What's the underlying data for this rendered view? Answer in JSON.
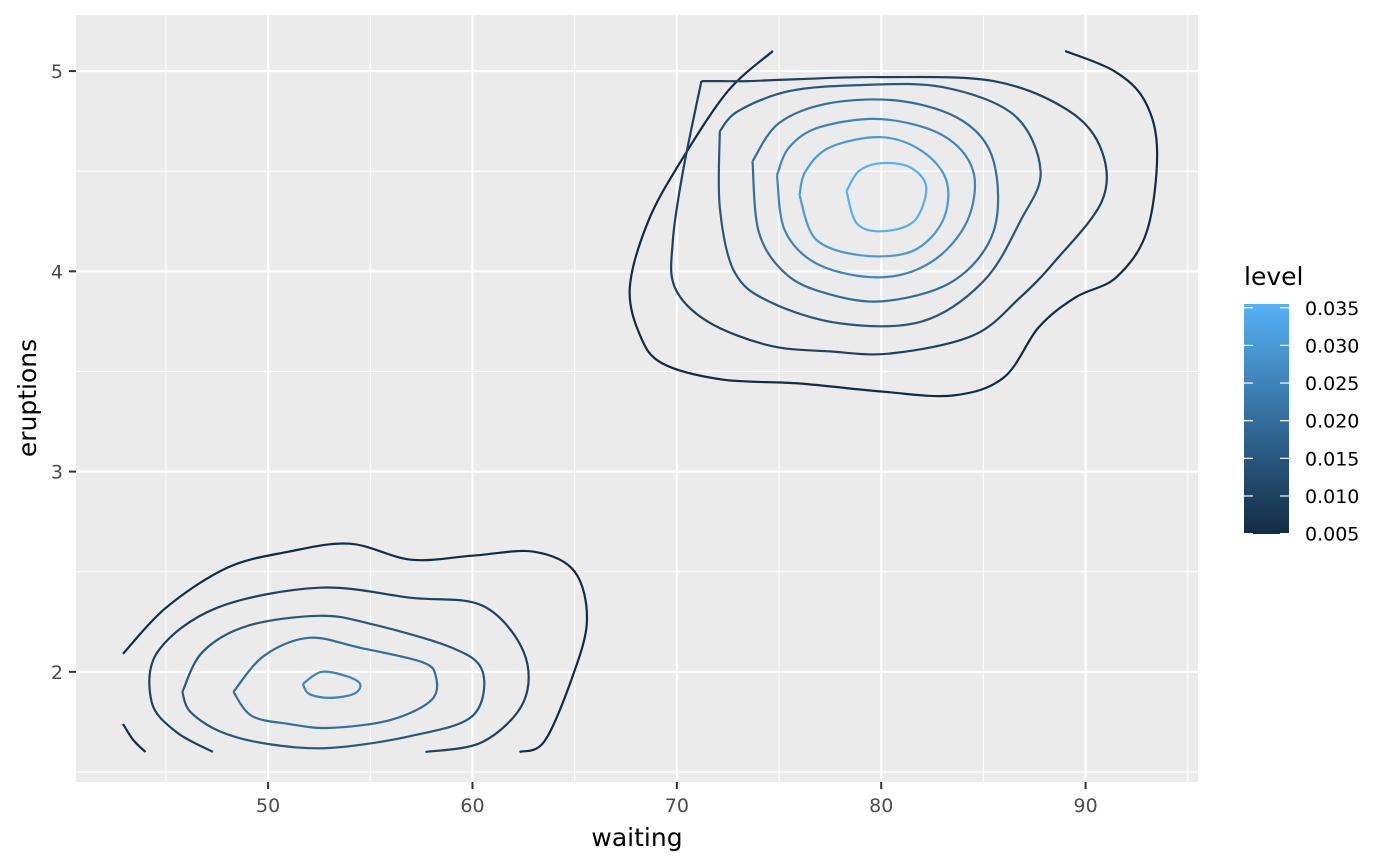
{
  "chart_data": {
    "type": "contour",
    "xlabel": "waiting",
    "ylabel": "eruptions",
    "xlim": [
      40.6,
      95.5
    ],
    "ylim": [
      1.45,
      5.28
    ],
    "x_ticks": [
      50,
      60,
      70,
      80,
      90
    ],
    "y_ticks": [
      2,
      3,
      4,
      5
    ],
    "grid": true,
    "background": "#ebebeb",
    "legend": {
      "title": "level",
      "position": "right",
      "labels": [
        "0.035",
        "0.030",
        "0.025",
        "0.020",
        "0.015",
        "0.010",
        "0.005"
      ],
      "values": [
        0.035,
        0.03,
        0.025,
        0.02,
        0.015,
        0.01,
        0.005
      ],
      "range": [
        0.00495,
        0.0355
      ],
      "color_low": "#132b43",
      "color_high": "#56b1f7"
    },
    "contours": [
      {
        "level": 0.005,
        "points": [
          [
            74.7,
            5.1
          ],
          [
            72.5,
            4.9
          ],
          [
            70.2,
            4.55
          ],
          [
            68.6,
            4.25
          ],
          [
            67.7,
            3.92
          ],
          [
            68.2,
            3.68
          ],
          [
            69.3,
            3.54
          ],
          [
            72.2,
            3.46
          ],
          [
            76.0,
            3.44
          ],
          [
            80.0,
            3.4
          ],
          [
            83.5,
            3.38
          ],
          [
            86.0,
            3.47
          ],
          [
            87.7,
            3.72
          ],
          [
            89.5,
            3.87
          ],
          [
            91.5,
            3.97
          ],
          [
            93.0,
            4.2
          ],
          [
            93.5,
            4.6
          ],
          [
            92.9,
            4.85
          ],
          [
            91.4,
            5.0
          ],
          [
            89.0,
            5.1
          ]
        ]
      },
      {
        "level": 0.01,
        "points": [
          [
            71.2,
            4.95
          ],
          [
            70.3,
            4.5
          ],
          [
            69.8,
            4.15
          ],
          [
            69.9,
            3.92
          ],
          [
            71.5,
            3.75
          ],
          [
            74.5,
            3.63
          ],
          [
            77.5,
            3.6
          ],
          [
            80.5,
            3.59
          ],
          [
            84.5,
            3.68
          ],
          [
            86.8,
            3.87
          ],
          [
            88.5,
            4.05
          ],
          [
            90.8,
            4.35
          ],
          [
            90.8,
            4.6
          ],
          [
            89.2,
            4.8
          ],
          [
            85.5,
            4.95
          ],
          [
            80.0,
            4.97
          ],
          [
            76.0,
            4.96
          ],
          [
            73.5,
            4.95
          ],
          [
            72.2,
            4.95
          ],
          [
            71.2,
            4.95
          ]
        ]
      },
      {
        "level": 0.015,
        "points": [
          [
            72.1,
            4.7
          ],
          [
            72.1,
            4.32
          ],
          [
            72.8,
            4.0
          ],
          [
            74.5,
            3.85
          ],
          [
            78.0,
            3.74
          ],
          [
            82.0,
            3.75
          ],
          [
            85.0,
            3.95
          ],
          [
            86.8,
            4.25
          ],
          [
            87.8,
            4.5
          ],
          [
            86.5,
            4.78
          ],
          [
            83.0,
            4.92
          ],
          [
            79.0,
            4.93
          ],
          [
            75.5,
            4.9
          ],
          [
            73.0,
            4.8
          ],
          [
            72.1,
            4.7
          ]
        ]
      },
      {
        "level": 0.02,
        "points": [
          [
            73.7,
            4.55
          ],
          [
            74.0,
            4.2
          ],
          [
            75.2,
            4.0
          ],
          [
            77.0,
            3.9
          ],
          [
            80.0,
            3.85
          ],
          [
            83.5,
            3.95
          ],
          [
            85.5,
            4.2
          ],
          [
            85.5,
            4.55
          ],
          [
            84.0,
            4.75
          ],
          [
            81.0,
            4.85
          ],
          [
            77.5,
            4.84
          ],
          [
            75.0,
            4.74
          ],
          [
            73.7,
            4.55
          ]
        ]
      },
      {
        "level": 0.025,
        "points": [
          [
            74.9,
            4.48
          ],
          [
            75.3,
            4.2
          ],
          [
            77.0,
            4.03
          ],
          [
            80.0,
            3.97
          ],
          [
            82.5,
            4.05
          ],
          [
            84.2,
            4.25
          ],
          [
            84.5,
            4.5
          ],
          [
            83.0,
            4.68
          ],
          [
            80.0,
            4.76
          ],
          [
            77.0,
            4.72
          ],
          [
            75.5,
            4.62
          ],
          [
            74.9,
            4.48
          ]
        ]
      },
      {
        "level": 0.03,
        "points": [
          [
            76.0,
            4.38
          ],
          [
            76.8,
            4.16
          ],
          [
            79.0,
            4.08
          ],
          [
            81.5,
            4.1
          ],
          [
            83.0,
            4.25
          ],
          [
            83.2,
            4.45
          ],
          [
            82.0,
            4.6
          ],
          [
            80.0,
            4.67
          ],
          [
            77.5,
            4.62
          ],
          [
            76.3,
            4.5
          ],
          [
            76.0,
            4.38
          ]
        ]
      },
      {
        "level": 0.035,
        "points": [
          [
            78.3,
            4.4
          ],
          [
            78.8,
            4.24
          ],
          [
            80.0,
            4.2
          ],
          [
            81.6,
            4.25
          ],
          [
            82.2,
            4.42
          ],
          [
            81.4,
            4.52
          ],
          [
            80.0,
            4.54
          ],
          [
            78.9,
            4.5
          ],
          [
            78.3,
            4.4
          ]
        ]
      },
      {
        "level": 0.005,
        "points": [
          [
            42.9,
            2.09
          ],
          [
            45.0,
            2.32
          ],
          [
            48.0,
            2.52
          ],
          [
            51.0,
            2.6
          ],
          [
            54.0,
            2.64
          ],
          [
            57.0,
            2.56
          ],
          [
            60.0,
            2.58
          ],
          [
            63.0,
            2.6
          ],
          [
            65.0,
            2.5
          ],
          [
            65.6,
            2.25
          ],
          [
            64.8,
            1.95
          ],
          [
            63.5,
            1.65
          ],
          [
            62.3,
            1.6
          ]
        ]
      },
      {
        "level": 0.005,
        "points": [
          [
            42.9,
            1.74
          ],
          [
            43.4,
            1.66
          ],
          [
            44.0,
            1.6
          ]
        ]
      },
      {
        "level": 0.01,
        "points": [
          [
            47.3,
            1.6
          ],
          [
            45.5,
            1.7
          ],
          [
            44.3,
            1.85
          ],
          [
            44.6,
            2.1
          ],
          [
            47.5,
            2.32
          ],
          [
            52.5,
            2.42
          ],
          [
            57.0,
            2.37
          ],
          [
            60.5,
            2.33
          ],
          [
            62.5,
            2.1
          ],
          [
            62.5,
            1.85
          ],
          [
            60.5,
            1.65
          ],
          [
            57.7,
            1.6
          ]
        ]
      },
      {
        "level": 0.015,
        "points": [
          [
            45.8,
            1.9
          ],
          [
            46.2,
            1.8
          ],
          [
            47.7,
            1.7
          ],
          [
            50.0,
            1.64
          ],
          [
            53.0,
            1.62
          ],
          [
            57.0,
            1.68
          ],
          [
            60.0,
            1.78
          ],
          [
            60.5,
            2.0
          ],
          [
            59.0,
            2.12
          ],
          [
            55.0,
            2.24
          ],
          [
            52.5,
            2.28
          ],
          [
            49.0,
            2.23
          ],
          [
            46.8,
            2.1
          ],
          [
            45.8,
            1.9
          ]
        ]
      },
      {
        "level": 0.02,
        "points": [
          [
            48.3,
            1.9
          ],
          [
            49.2,
            1.78
          ],
          [
            51.0,
            1.74
          ],
          [
            53.0,
            1.72
          ],
          [
            56.0,
            1.76
          ],
          [
            58.0,
            1.86
          ],
          [
            58.2,
            1.98
          ],
          [
            57.5,
            2.05
          ],
          [
            54.5,
            2.12
          ],
          [
            52.0,
            2.17
          ],
          [
            49.8,
            2.08
          ],
          [
            48.3,
            1.9
          ]
        ]
      },
      {
        "level": 0.025,
        "points": [
          [
            51.7,
            1.94
          ],
          [
            52.0,
            1.89
          ],
          [
            53.0,
            1.87
          ],
          [
            54.2,
            1.89
          ],
          [
            54.5,
            1.94
          ],
          [
            53.8,
            1.98
          ],
          [
            52.6,
            2.0
          ],
          [
            51.7,
            1.94
          ]
        ]
      }
    ]
  }
}
